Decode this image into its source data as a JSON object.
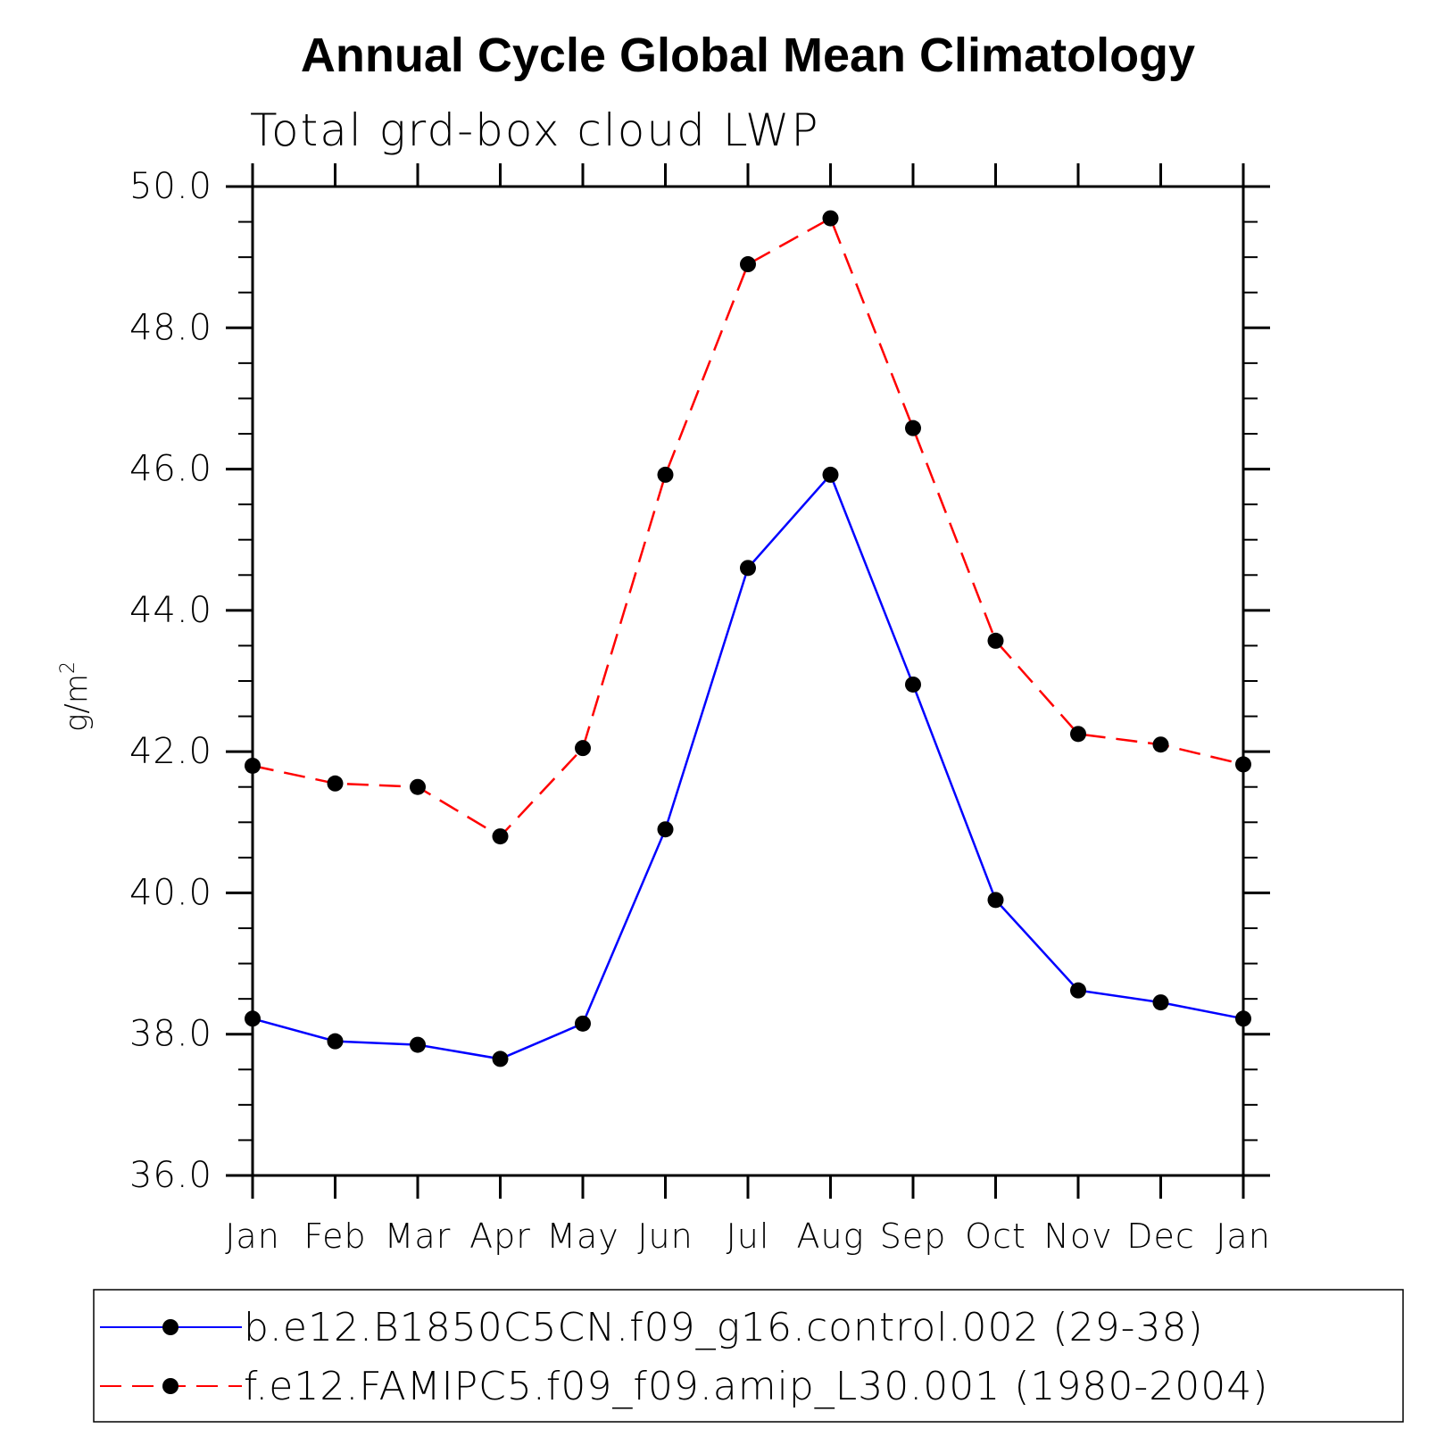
{
  "chart_data": {
    "type": "line",
    "title": "Annual Cycle Global Mean Climatology",
    "subtitle": "Total grd-box cloud LWP",
    "ylabel_base": "g/m",
    "ylabel_sup": "2",
    "categories": [
      "Jan",
      "Feb",
      "Mar",
      "Apr",
      "May",
      "Jun",
      "Jul",
      "Aug",
      "Sep",
      "Oct",
      "Nov",
      "Dec",
      "Jan"
    ],
    "ylim": [
      36.0,
      50.0
    ],
    "yticks": [
      "36.0",
      "38.0",
      "40.0",
      "42.0",
      "44.0",
      "46.0",
      "48.0",
      "50.0"
    ],
    "series": [
      {
        "name": "b.e12.B1850C5CN.f09_g16.control.002 (29-38)",
        "color": "#0000ff",
        "dash": "solid",
        "values": [
          38.22,
          37.9,
          37.85,
          37.65,
          38.15,
          40.9,
          44.6,
          45.92,
          42.95,
          39.9,
          38.62,
          38.45,
          38.22
        ]
      },
      {
        "name": "f.e12.FAMIPC5.f09_f09.amip_L30.001 (1980-2004)",
        "color": "#ff0000",
        "dash": "dashed",
        "values": [
          41.8,
          41.55,
          41.5,
          40.8,
          42.05,
          45.92,
          48.9,
          49.55,
          46.58,
          43.57,
          42.25,
          42.1,
          41.82
        ]
      }
    ],
    "legend_position": "bottom"
  }
}
